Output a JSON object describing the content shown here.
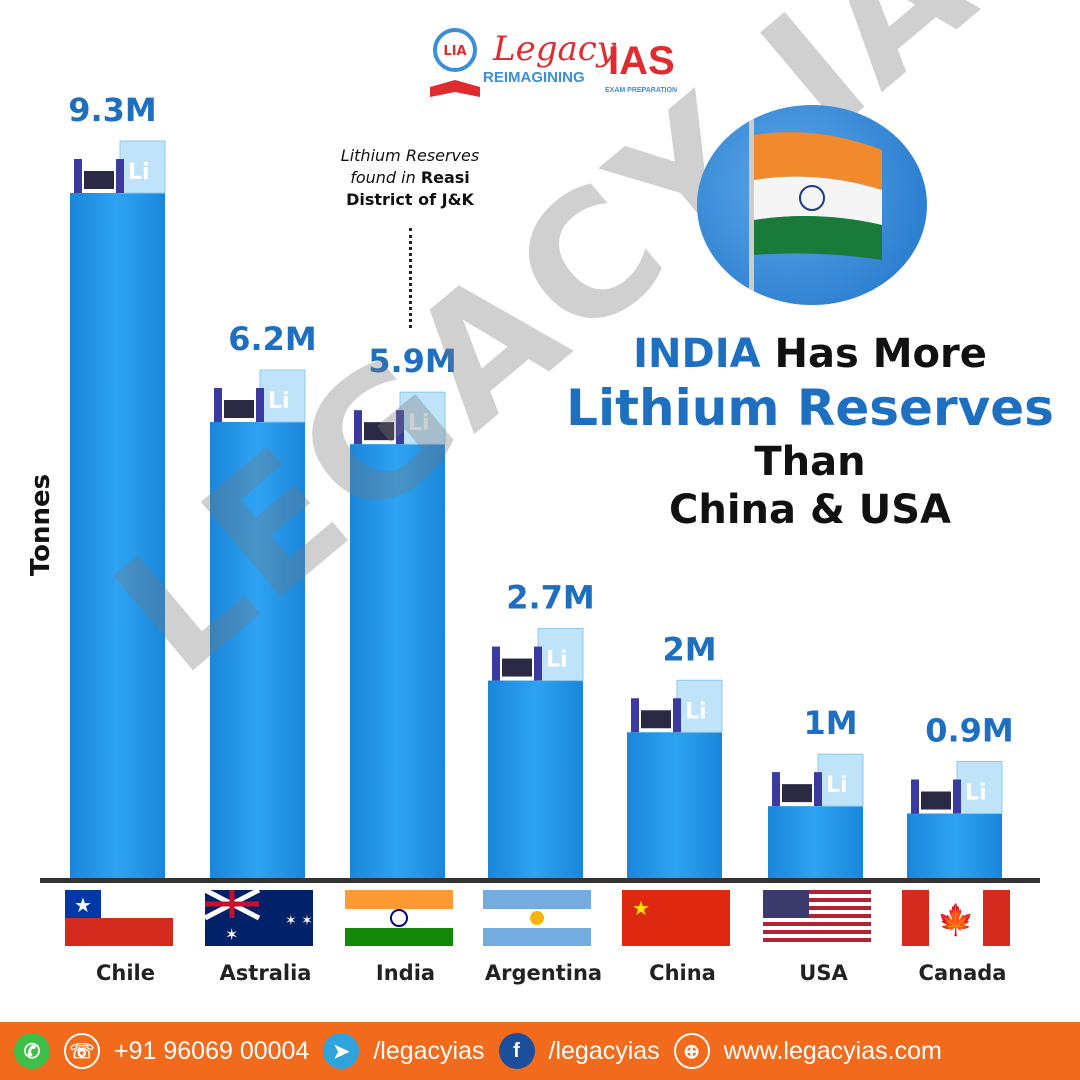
{
  "brand": {
    "name": "Legacy",
    "suffix": "IAS",
    "tagline": "REIMAGINING",
    "sub": "EXAM PREPARATION",
    "badge": "LIA",
    "watermark": "LEGACY IAS"
  },
  "annotation": {
    "line1": "Lithium Reserves",
    "line2a": "found in ",
    "line2b": "Reasi",
    "line3": "District of J&K"
  },
  "headline": {
    "part1": "INDIA",
    "part2": " Has More",
    "line2": "Lithium Reserves",
    "line3": "Than",
    "line4": "China & USA"
  },
  "chart_data": {
    "type": "bar",
    "ylabel": "Tonnes",
    "categories": [
      "Chile",
      "Astralia",
      "India",
      "Argentina",
      "China",
      "USA",
      "Canada"
    ],
    "values": [
      9.3,
      6.2,
      5.9,
      2.7,
      2,
      1,
      0.9
    ],
    "labels": [
      "9.3M",
      "6.2M",
      "5.9M",
      "2.7M",
      "2M",
      "1M",
      "0.9M"
    ],
    "unit": "million tonnes",
    "bar_color": "#2196e6",
    "label_color": "#1e6fc0"
  },
  "footer": {
    "phone": "+91 96069 00004",
    "telegram": "/legacyias",
    "facebook": "/legacyias",
    "website": "www.legacyias.com"
  },
  "colors": {
    "footer": "#f26a1b",
    "accent": "#1e6fc0",
    "brand_red": "#e02b2f"
  }
}
